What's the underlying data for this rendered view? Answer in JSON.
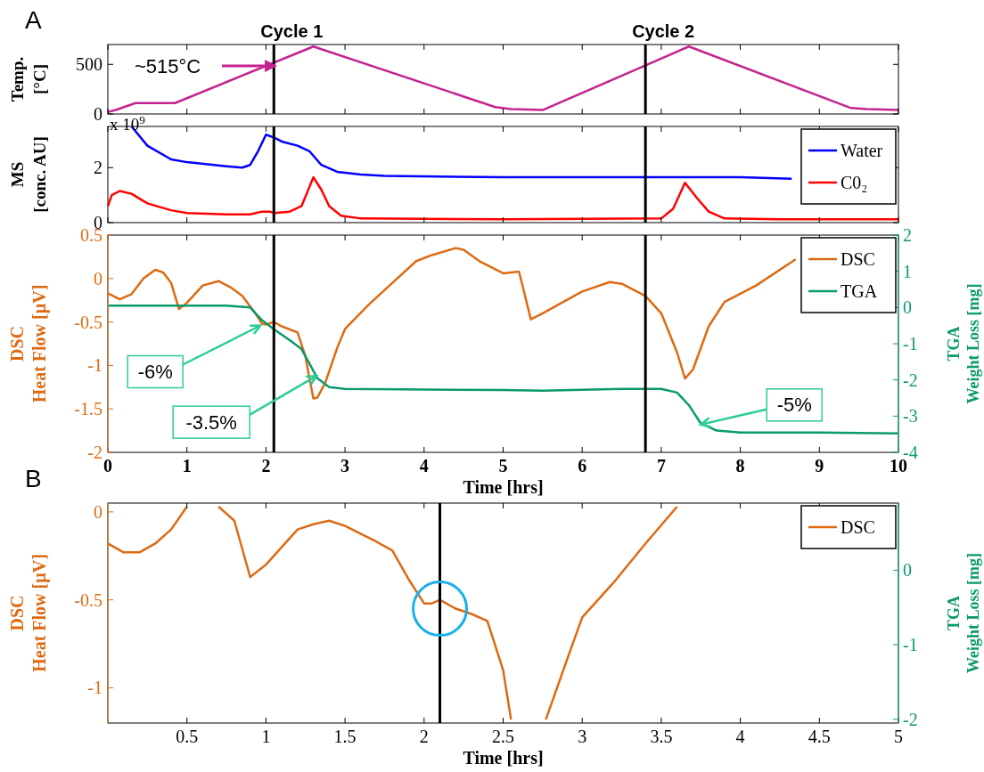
{
  "chart_data": [
    {
      "type": "line",
      "title": "A",
      "ylabel": "Temp.\n[°C]",
      "xlim": [
        0,
        10
      ],
      "xticks": [
        0,
        1,
        2,
        3,
        4,
        5,
        6,
        7,
        8,
        9,
        10
      ],
      "ylim": [
        0,
        700
      ],
      "yticks": [
        0,
        500
      ],
      "tick_labels": "y",
      "series": [
        {
          "color": "#c4248f",
          "x": [
            0,
            0.1,
            0.35,
            0.85,
            2.6,
            4.9,
            5.1,
            5.5,
            7.35,
            9.4,
            9.6,
            10
          ],
          "values": [
            20,
            40,
            110,
            110,
            680,
            70,
            50,
            40,
            680,
            60,
            50,
            40
          ]
        }
      ],
      "ref_lines": [
        {
          "axis": "x",
          "value": 2.1,
          "label": "Cycle 1"
        },
        {
          "axis": "x",
          "value": 6.8,
          "label": "Cycle 2"
        }
      ],
      "annotations": [
        "~515°C"
      ]
    },
    {
      "type": "line",
      "ylabel": "MS\n[conc. AU]",
      "xlim": [
        0,
        10
      ],
      "xticks": [
        0,
        1,
        2,
        3,
        4,
        5,
        6,
        7,
        8,
        9,
        10
      ],
      "ylim": [
        0,
        3.5
      ],
      "yticks": [
        0,
        2
      ],
      "tick_labels": "y",
      "legend": "top right",
      "series": [
        {
          "name": "Water",
          "color": "#0000ff",
          "x": [
            0.3,
            0.5,
            0.8,
            1.0,
            1.5,
            1.7,
            1.8,
            1.9,
            2.0,
            2.1,
            2.2,
            2.4,
            2.55,
            2.7,
            2.9,
            3.2,
            3.5,
            5,
            6.8,
            8,
            8.65
          ],
          "values": [
            3.5,
            2.8,
            2.3,
            2.2,
            2.05,
            2.0,
            2.1,
            2.6,
            3.2,
            3.1,
            2.95,
            2.8,
            2.6,
            2.1,
            1.85,
            1.75,
            1.7,
            1.65,
            1.65,
            1.65,
            1.6
          ]
        },
        {
          "name": "C0₂",
          "color": "#ff0000",
          "x": [
            0,
            0.05,
            0.15,
            0.3,
            0.5,
            0.8,
            1.0,
            1.5,
            1.8,
            1.95,
            2.05,
            2.1,
            2.3,
            2.45,
            2.55,
            2.6,
            2.7,
            2.8,
            2.95,
            3.2,
            5,
            7.0,
            7.15,
            7.3,
            7.45,
            7.6,
            7.8,
            8.5,
            10
          ],
          "values": [
            0.6,
            1.0,
            1.15,
            1.05,
            0.7,
            0.45,
            0.35,
            0.3,
            0.3,
            0.4,
            0.4,
            0.35,
            0.4,
            0.6,
            1.3,
            1.65,
            1.2,
            0.6,
            0.25,
            0.15,
            0.12,
            0.15,
            0.5,
            1.45,
            0.9,
            0.4,
            0.15,
            0.12,
            0.12
          ]
        }
      ],
      "ref_lines": [
        {
          "axis": "x",
          "value": 2.1
        },
        {
          "axis": "x",
          "value": 6.8
        }
      ],
      "annotations": [
        "x 10$^{9}$"
      ]
    },
    {
      "type": "line",
      "xlabel": "Time [hrs]",
      "ylabel": "DSC\nHeat Flow [µV]",
      "y2label": "TGA\nWeight Loss [mg]",
      "xlim": [
        0,
        10
      ],
      "xticks": [
        0,
        1,
        2,
        3,
        4,
        5,
        6,
        7,
        8,
        9,
        10
      ],
      "ylim": [
        -2,
        0.5
      ],
      "yticks": [
        -2,
        -1.5,
        -1,
        -0.5,
        0,
        0.5
      ],
      "y2lim": [
        -4,
        2
      ],
      "y2ticks": [
        -4,
        -3,
        -2,
        -1,
        0,
        1,
        2
      ],
      "legend": "top right",
      "series": [
        {
          "name": "DSC",
          "color": "#dd6a12",
          "x": [
            0,
            0.15,
            0.3,
            0.45,
            0.6,
            0.7,
            0.8,
            0.9,
            1.0,
            1.2,
            1.4,
            1.55,
            1.7,
            1.85,
            1.95,
            2.0,
            2.1,
            2.2,
            2.4,
            2.5,
            2.55,
            2.6,
            2.65,
            2.75,
            2.9,
            3.0,
            3.3,
            3.6,
            3.9,
            4.1,
            4.4,
            4.5,
            4.7,
            5.0,
            5.2,
            5.25,
            5.35,
            5.5,
            5.8,
            6.0,
            6.35,
            6.5,
            6.8,
            7.0,
            7.2,
            7.3,
            7.4,
            7.6,
            7.8,
            8.2,
            8.7
          ],
          "values": [
            -0.17,
            -0.24,
            -0.18,
            0.0,
            0.1,
            0.07,
            -0.05,
            -0.35,
            -0.28,
            -0.08,
            -0.03,
            -0.1,
            -0.2,
            -0.38,
            -0.52,
            -0.53,
            -0.5,
            -0.55,
            -0.62,
            -0.9,
            -1.15,
            -1.38,
            -1.37,
            -1.2,
            -0.8,
            -0.58,
            -0.3,
            -0.05,
            0.2,
            0.27,
            0.35,
            0.33,
            0.2,
            0.06,
            0.08,
            -0.1,
            -0.47,
            -0.4,
            -0.25,
            -0.15,
            -0.04,
            -0.06,
            -0.2,
            -0.4,
            -0.85,
            -1.15,
            -1.05,
            -0.55,
            -0.27,
            -0.08,
            0.22
          ]
        },
        {
          "name": "TGA",
          "color": "#0a9a6e",
          "axis": "y2",
          "x": [
            0,
            1.5,
            1.8,
            1.95,
            2.1,
            2.3,
            2.45,
            2.55,
            2.65,
            2.8,
            3.0,
            5.0,
            5.5,
            6.5,
            7.0,
            7.2,
            7.35,
            7.5,
            7.7,
            8.0,
            9.0,
            10
          ],
          "values": [
            0.05,
            0.05,
            0,
            -0.35,
            -0.6,
            -0.9,
            -1.15,
            -1.55,
            -1.95,
            -2.2,
            -2.25,
            -2.28,
            -2.3,
            -2.25,
            -2.25,
            -2.35,
            -2.7,
            -3.2,
            -3.4,
            -3.45,
            -3.45,
            -3.48
          ]
        }
      ],
      "ref_lines": [
        {
          "axis": "x",
          "value": 2.1
        },
        {
          "axis": "x",
          "value": 6.8
        }
      ],
      "annotations": [
        {
          "text": "-6%",
          "x": 1.93,
          "y": -0.54
        },
        {
          "text": "-3.5%",
          "x": 2.64,
          "y": -1.12
        },
        {
          "text": "-5%",
          "x": 7.5,
          "y": -1.68
        }
      ]
    },
    {
      "type": "line",
      "title": "B",
      "xlabel": "Time [hrs]",
      "ylabel": "DSC\nHeat Flow [µV]",
      "y2label": "TGA\nWeight Loss [mg]",
      "xlim": [
        0,
        5
      ],
      "xticks": [
        0.5,
        1,
        1.5,
        2,
        2.5,
        3,
        3.5,
        4,
        4.5,
        5
      ],
      "ylim": [
        -1.2,
        0.05
      ],
      "yticks": [
        -1,
        -0.5,
        0
      ],
      "y2lim": [
        -2.05,
        0.9
      ],
      "y2ticks": [
        -2,
        -1,
        0
      ],
      "legend": "top right",
      "series": [
        {
          "name": "DSC",
          "color": "#dd6a12",
          "x": [
            0,
            0.1,
            0.2,
            0.3,
            0.4,
            0.5,
            0.6,
            0.7,
            0.8,
            0.9,
            1.0,
            1.2,
            1.3,
            1.4,
            1.5,
            1.7,
            1.8,
            1.9,
            2.0,
            2.05,
            2.1,
            2.2,
            2.3,
            2.4,
            2.5,
            2.55,
            2.65,
            2.77,
            2.9,
            3.0,
            3.2,
            3.4,
            3.6
          ],
          "values": [
            -0.18,
            -0.23,
            -0.23,
            -0.18,
            -0.1,
            0.03,
            null,
            0.03,
            -0.05,
            -0.37,
            -0.3,
            -0.1,
            -0.07,
            -0.05,
            -0.08,
            -0.17,
            -0.22,
            -0.38,
            -0.52,
            -0.52,
            -0.5,
            -0.55,
            -0.58,
            -0.62,
            -0.9,
            -1.18,
            null,
            -1.18,
            -0.85,
            -0.6,
            -0.4,
            -0.18,
            0.03
          ]
        }
      ],
      "ref_lines": [
        {
          "axis": "x",
          "value": 2.1
        }
      ]
    }
  ]
}
